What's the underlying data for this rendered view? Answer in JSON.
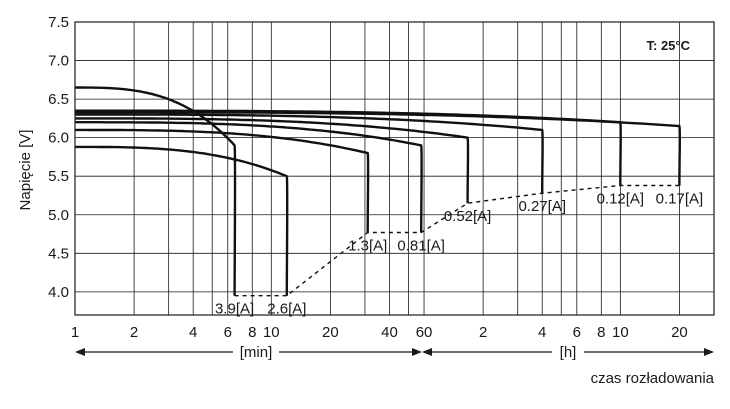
{
  "chart_data": {
    "type": "line",
    "title": "",
    "annotation": "T: 25°C",
    "ylabel": "Napięcie [V]",
    "xlabel": "czas rozładowania",
    "x_unit_labels": {
      "min": "[min]",
      "h": "[h]"
    },
    "ylim": [
      3.7,
      7.5
    ],
    "y_ticks": [
      4.0,
      4.5,
      5.0,
      5.5,
      6.0,
      6.5,
      7.0,
      7.5
    ],
    "y_tick_labels": [
      "4.0",
      "4.5",
      "5.0",
      "5.5",
      "6.0",
      "6.5",
      "7.0",
      "7.5"
    ],
    "x_scale": "log",
    "xlim_minutes": [
      1,
      1800
    ],
    "x_ticks_minutes": [
      1,
      2,
      4,
      6,
      8,
      10,
      20,
      40,
      60,
      120,
      240,
      360,
      480,
      600,
      1200
    ],
    "x_tick_labels": [
      "1",
      "2",
      "4",
      "6",
      "8",
      "10",
      "20",
      "40",
      "60",
      "2",
      "4",
      "6",
      "8",
      "10",
      "20"
    ],
    "x_minor_grid_minutes": [
      3,
      5,
      30,
      50,
      180,
      300
    ],
    "grid": true,
    "series": [
      {
        "name": "3.9[A]",
        "start_v": 6.65,
        "knee_v": 5.9,
        "end_minutes": 6.5,
        "end_v": 3.95
      },
      {
        "name": "2.6[A]",
        "start_v": 5.88,
        "knee_v": 5.5,
        "end_minutes": 12,
        "end_v": 3.95
      },
      {
        "name": "1.3[A]",
        "start_v": 6.1,
        "knee_v": 5.8,
        "end_minutes": 31,
        "end_v": 4.77
      },
      {
        "name": "0.81[A]",
        "start_v": 6.2,
        "knee_v": 5.9,
        "end_minutes": 58,
        "end_v": 4.77
      },
      {
        "name": "0.52[A]",
        "start_v": 6.25,
        "knee_v": 6.0,
        "end_minutes": 100,
        "end_v": 5.15
      },
      {
        "name": "0.27[A]",
        "start_v": 6.3,
        "knee_v": 6.1,
        "end_minutes": 240,
        "end_v": 5.28
      },
      {
        "name": "0.12[A]",
        "start_v": 6.35,
        "knee_v": 6.2,
        "end_minutes": 600,
        "end_v": 5.38
      },
      {
        "name": "0.17[A]",
        "start_v": 6.33,
        "knee_v": 6.15,
        "end_minutes": 1200,
        "end_v": 5.38
      }
    ],
    "end_of_discharge_line": [
      {
        "minutes": 6.5,
        "v": 3.95
      },
      {
        "minutes": 12,
        "v": 3.95
      },
      {
        "minutes": 31,
        "v": 4.77
      },
      {
        "minutes": 58,
        "v": 4.77
      },
      {
        "minutes": 100,
        "v": 5.15
      },
      {
        "minutes": 240,
        "v": 5.28
      },
      {
        "minutes": 600,
        "v": 5.38
      },
      {
        "minutes": 1200,
        "v": 5.38
      }
    ]
  }
}
